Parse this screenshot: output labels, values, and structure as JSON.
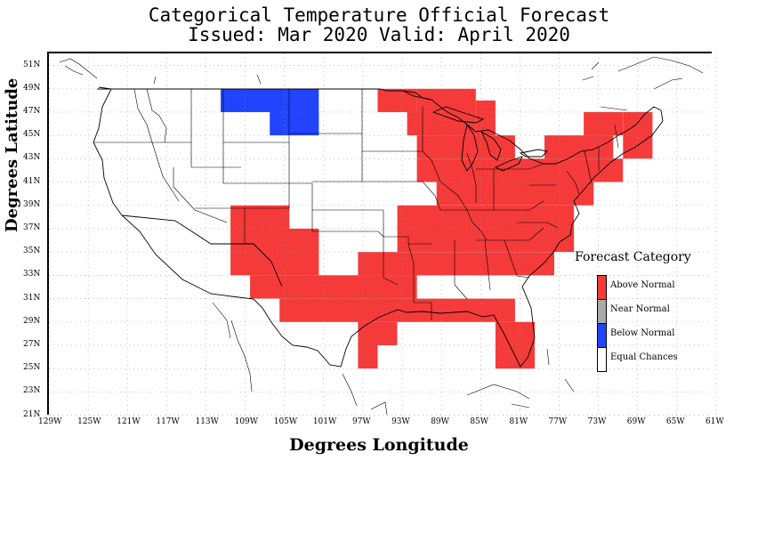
{
  "title": {
    "line1": "Categorical Temperature Official Forecast",
    "line2": "Issued: Mar 2020 Valid: April 2020"
  },
  "axes": {
    "xlabel": "Degrees Longitude",
    "ylabel": "Degrees Latitude",
    "xticks": [
      "129W",
      "125W",
      "121W",
      "117W",
      "113W",
      "109W",
      "105W",
      "101W",
      "97W",
      "93W",
      "89W",
      "85W",
      "81W",
      "77W",
      "73W",
      "69W",
      "65W",
      "61W"
    ],
    "yticks": [
      "51N",
      "49N",
      "47N",
      "45N",
      "43N",
      "41N",
      "39N",
      "37N",
      "35N",
      "33N",
      "31N",
      "29N",
      "27N",
      "25N",
      "23N",
      "21N"
    ],
    "xlim": [
      -129,
      -61
    ],
    "ylim": [
      21,
      52
    ],
    "grid": true
  },
  "colors": {
    "above": "#f53a3a",
    "near": "#aaaaaa",
    "below": "#2244ff",
    "equal": "#ffffff"
  },
  "legend": {
    "title": "Forecast Category",
    "items": [
      {
        "label": "Above Normal",
        "color": "#f53a3a"
      },
      {
        "label": "Near Normal",
        "color": "#aaaaaa"
      },
      {
        "label": "Below Normal",
        "color": "#2244ff"
      },
      {
        "label": "Equal Chances",
        "color": "#ffffff"
      }
    ]
  },
  "chart_data": {
    "type": "heatmap",
    "categories": [
      "Above Normal",
      "Near Normal",
      "Below Normal",
      "Equal Chances"
    ],
    "regions": {
      "above": [
        {
          "lon": [
            -95.5,
            -91.5
          ],
          "lat": [
            47,
            49
          ]
        },
        {
          "lon": [
            -91.5,
            -85.5
          ],
          "lat": [
            47,
            49
          ]
        },
        {
          "lon": [
            -92.5,
            -85.5
          ],
          "lat": [
            45,
            47
          ]
        },
        {
          "lon": [
            -85.5,
            -83.5
          ],
          "lat": [
            45,
            48
          ]
        },
        {
          "lon": [
            -91.5,
            -81.5
          ],
          "lat": [
            43,
            45
          ]
        },
        {
          "lon": [
            -91.5,
            -74.5
          ],
          "lat": [
            41,
            43
          ]
        },
        {
          "lon": [
            -89.5,
            -73.5
          ],
          "lat": [
            39,
            41
          ]
        },
        {
          "lon": [
            -93.5,
            -75.5
          ],
          "lat": [
            37,
            39
          ]
        },
        {
          "lon": [
            -78.5,
            -71.5
          ],
          "lat": [
            43,
            45
          ]
        },
        {
          "lon": [
            -77.5,
            -70.5
          ],
          "lat": [
            41,
            43
          ]
        },
        {
          "lon": [
            -70.5,
            -67.5
          ],
          "lat": [
            43,
            47
          ]
        },
        {
          "lon": [
            -74.5,
            -70.5
          ],
          "lat": [
            45,
            47
          ]
        },
        {
          "lon": [
            -110.5,
            -104.5
          ],
          "lat": [
            37,
            39
          ]
        },
        {
          "lon": [
            -110.5,
            -101.5
          ],
          "lat": [
            33,
            37
          ]
        },
        {
          "lon": [
            -108.5,
            -91.5
          ],
          "lat": [
            31,
            33
          ]
        },
        {
          "lon": [
            -105.5,
            -81.5
          ],
          "lat": [
            29,
            31
          ]
        },
        {
          "lon": [
            -97.5,
            -93.5
          ],
          "lat": [
            27,
            29
          ]
        },
        {
          "lon": [
            -97.5,
            -95.5
          ],
          "lat": [
            25,
            27
          ]
        },
        {
          "lon": [
            -83.5,
            -79.5
          ],
          "lat": [
            25,
            29
          ]
        },
        {
          "lon": [
            -97.5,
            -77.5
          ],
          "lat": [
            33,
            35
          ]
        },
        {
          "lon": [
            -93.5,
            -75.5
          ],
          "lat": [
            35,
            37
          ]
        }
      ],
      "below": [
        {
          "lon": [
            -111.5,
            -101.5
          ],
          "lat": [
            47,
            49
          ]
        },
        {
          "lon": [
            -106.5,
            -101.5
          ],
          "lat": [
            45,
            47
          ]
        }
      ],
      "near": []
    }
  }
}
